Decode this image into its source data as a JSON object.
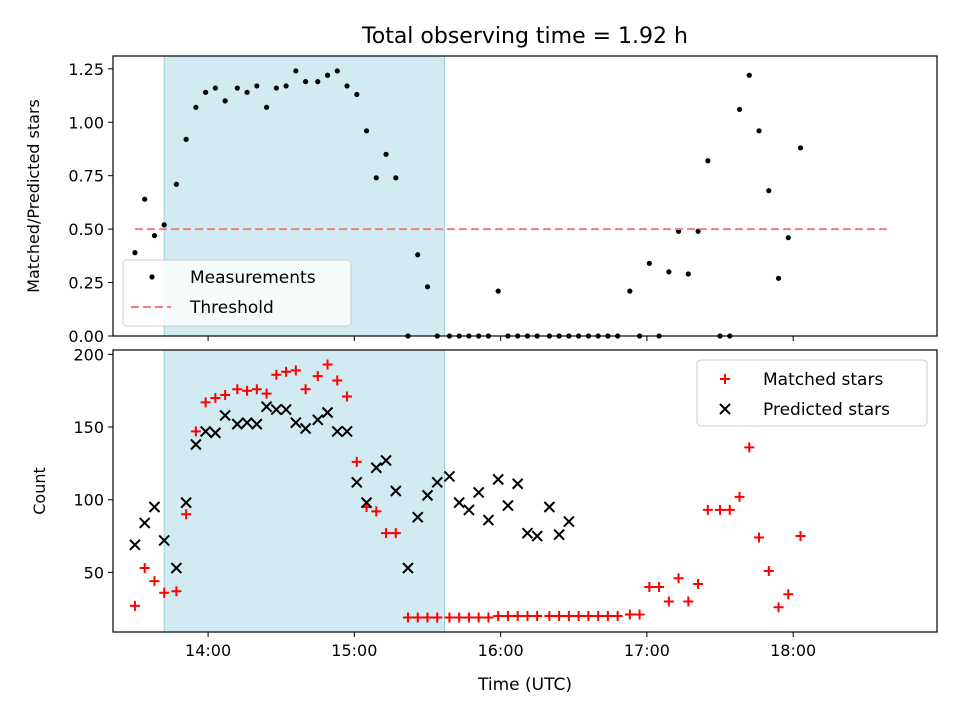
{
  "figure": {
    "title": "Total observing time = 1.92 h",
    "xlabel": "Time (UTC)"
  },
  "chart_data": [
    {
      "type": "scatter",
      "panel": "top",
      "ylabel": "Matched/Predicted stars",
      "xlim": [
        "13:21",
        "18:59"
      ],
      "ylim": [
        0,
        1.31
      ],
      "x_ticks": [
        "14:00",
        "15:00",
        "16:00",
        "17:00",
        "18:00"
      ],
      "y_ticks": [
        "0.00",
        "0.25",
        "0.50",
        "0.75",
        "1.00",
        "1.25"
      ],
      "shaded_span": {
        "x0": "13:42",
        "x1": "15:37",
        "color": "#add8e6"
      },
      "grid": false,
      "legend": {
        "position": "lower-left",
        "entries": [
          "Measurements",
          "Threshold"
        ]
      },
      "series": [
        {
          "name": "Measurements",
          "marker": "dot",
          "color": "#000000",
          "x": [
            "13:30",
            "13:34",
            "13:38",
            "13:42",
            "13:47",
            "13:51",
            "13:55",
            "13:59",
            "14:03",
            "14:07",
            "14:12",
            "14:16",
            "14:20",
            "14:24",
            "14:28",
            "14:32",
            "14:36",
            "14:40",
            "14:45",
            "14:49",
            "14:53",
            "14:57",
            "15:01",
            "15:05",
            "15:09",
            "15:13",
            "15:17",
            "15:22",
            "15:26",
            "15:30",
            "15:34",
            "15:39",
            "15:43",
            "15:47",
            "15:51",
            "15:55",
            "15:59",
            "16:03",
            "16:07",
            "16:11",
            "16:15",
            "16:20",
            "16:24",
            "16:28",
            "16:32",
            "16:36",
            "16:40",
            "16:44",
            "16:48",
            "16:53",
            "16:57",
            "17:01",
            "17:05",
            "17:09",
            "17:13",
            "17:17",
            "17:21",
            "17:25",
            "17:30",
            "17:34",
            "17:38",
            "17:42",
            "17:46",
            "17:50",
            "17:54",
            "17:58",
            "18:03",
            "18:07",
            "18:11",
            "18:15",
            "18:19",
            "18:23",
            "18:28",
            "18:32",
            "18:36",
            "18:40"
          ],
          "y": [
            0.39,
            0.64,
            0.47,
            0.52,
            0.71,
            0.92,
            1.07,
            1.14,
            1.16,
            1.1,
            1.16,
            1.14,
            1.17,
            1.07,
            1.16,
            1.17,
            1.24,
            1.19,
            1.19,
            1.22,
            1.24,
            1.17,
            1.13,
            0.96,
            0.74,
            0.85,
            0.74,
            0.0,
            0.38,
            0.23,
            0.0,
            0.0,
            0.0,
            0.0,
            0.0,
            0.0,
            0.21,
            0.0,
            0.0,
            0.0,
            0.0,
            0.0,
            0.0,
            0.0,
            0.0,
            0.0,
            0.0,
            0.0,
            0.0,
            0.21,
            0.0,
            0.34,
            0.0,
            0.3,
            0.49,
            0.29,
            0.49,
            0.82,
            0.0,
            0.0,
            1.06,
            1.22,
            0.96,
            0.68,
            0.27,
            0.46,
            0.88,
            null,
            null,
            null,
            null,
            null,
            null,
            null,
            null,
            null
          ]
        },
        {
          "name": "Threshold",
          "line": "dashed",
          "color": "#f08080",
          "x": [
            "13:30",
            "18:40"
          ],
          "y": [
            0.5,
            0.5
          ]
        }
      ]
    },
    {
      "type": "scatter",
      "panel": "bottom",
      "ylabel": "Count",
      "xlim": [
        "13:21",
        "18:59"
      ],
      "ylim": [
        9,
        203
      ],
      "x_ticks": [
        "14:00",
        "15:00",
        "16:00",
        "17:00",
        "18:00"
      ],
      "y_ticks": [
        "50",
        "100",
        "150",
        "200"
      ],
      "shaded_span": {
        "x0": "13:42",
        "x1": "15:37",
        "color": "#add8e6"
      },
      "grid": false,
      "legend": {
        "position": "top-right",
        "entries": [
          "Matched stars",
          "Predicted stars"
        ]
      },
      "series": [
        {
          "name": "Matched stars",
          "marker": "plus",
          "color": "#ff0000",
          "x": [
            "13:30",
            "13:34",
            "13:38",
            "13:42",
            "13:47",
            "13:51",
            "13:55",
            "13:59",
            "14:03",
            "14:07",
            "14:12",
            "14:16",
            "14:20",
            "14:24",
            "14:28",
            "14:32",
            "14:36",
            "14:40",
            "14:45",
            "14:49",
            "14:53",
            "14:57",
            "15:01",
            "15:05",
            "15:09",
            "15:13",
            "15:17",
            "15:22",
            "15:26",
            "15:30",
            "15:34",
            "15:39",
            "15:43",
            "15:47",
            "15:51",
            "15:55",
            "15:59",
            "16:03",
            "16:07",
            "16:11",
            "16:15",
            "16:20",
            "16:24",
            "16:28",
            "16:32",
            "16:36",
            "16:40",
            "16:44",
            "16:48",
            "16:53",
            "16:57",
            "17:01",
            "17:05",
            "17:09",
            "17:13",
            "17:17",
            "17:21",
            "17:25",
            "17:30",
            "17:34",
            "17:38",
            "17:42",
            "17:46",
            "17:50",
            "17:54",
            "17:58",
            "18:03",
            "18:07",
            "18:11",
            "18:15",
            "18:19",
            "18:23",
            "18:28",
            "18:32",
            "18:36",
            "18:40"
          ],
          "y": [
            27,
            53,
            44,
            36,
            37,
            90,
            147,
            167,
            170,
            172,
            176,
            175,
            176,
            173,
            186,
            188,
            189,
            176,
            185,
            193,
            182,
            171,
            126,
            95,
            92,
            77,
            77,
            19,
            19,
            19,
            19,
            19,
            19,
            19,
            19,
            19,
            20,
            20,
            20,
            20,
            20,
            20,
            20,
            20,
            20,
            20,
            20,
            20,
            20,
            21,
            21,
            40,
            40,
            30,
            46,
            30,
            42,
            93,
            93,
            93,
            102,
            136,
            74,
            51,
            26,
            35,
            75,
            null,
            null,
            null,
            null,
            null,
            null,
            null,
            null,
            null
          ]
        },
        {
          "name": "Predicted stars",
          "marker": "x",
          "color": "#000000",
          "x": [
            "13:30",
            "13:34",
            "13:38",
            "13:42",
            "13:47",
            "13:51",
            "13:55",
            "13:59",
            "14:03",
            "14:07",
            "14:12",
            "14:16",
            "14:20",
            "14:24",
            "14:28",
            "14:32",
            "14:36",
            "14:40",
            "14:45",
            "14:49",
            "14:53",
            "14:57",
            "15:01",
            "15:05",
            "15:09",
            "15:13",
            "15:17",
            "15:22",
            "15:26",
            "15:30",
            "15:34",
            "15:39",
            "15:43",
            "15:47",
            "15:51",
            "15:55",
            "15:59",
            "16:03",
            "16:07",
            "16:11",
            "16:15",
            "16:20",
            "16:24",
            "16:28",
            "16:32",
            "16:36",
            "16:40",
            "16:44",
            "16:48",
            "16:53",
            "16:57",
            "17:01",
            "17:05",
            "17:09",
            "17:13",
            "17:17",
            "17:21",
            "17:25",
            "17:30",
            "17:34",
            "17:38",
            "17:42",
            "17:46",
            "17:50",
            "17:54",
            "17:58",
            "18:03",
            "18:07",
            "18:11",
            "18:15",
            "18:19",
            "18:23",
            "18:28",
            "18:32",
            "18:36",
            "18:40"
          ],
          "y": [
            69,
            84,
            95,
            72,
            53,
            98,
            138,
            147,
            146,
            158,
            152,
            153,
            152,
            164,
            162,
            162,
            153,
            149,
            155,
            160,
            147,
            147,
            112,
            98,
            122,
            127,
            106,
            53,
            88,
            103,
            112,
            116,
            98,
            93,
            105,
            86,
            114,
            96,
            111,
            77,
            75,
            95,
            76,
            85,
            null,
            null,
            null,
            null,
            null,
            null,
            null,
            null,
            null,
            null,
            null,
            null,
            null,
            null,
            null,
            null,
            null,
            null,
            null,
            null,
            null,
            null,
            null,
            null,
            null,
            null,
            null,
            null,
            null,
            null,
            null,
            null
          ]
        }
      ]
    }
  ]
}
